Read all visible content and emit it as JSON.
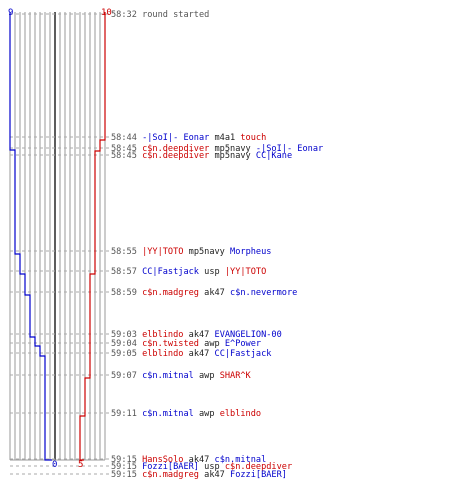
{
  "axis": {
    "top_left_label": "9",
    "top_right_label": "10",
    "bottom_zero_label": "0",
    "bottom_five_label": "5"
  },
  "colors": {
    "team_blue": "#0000cc",
    "team_red": "#cc0000",
    "neutral_text": "#222222",
    "time_text": "#555555",
    "grid": "#9a9a9a",
    "center_line": "#333333",
    "dash": "#aaaaaa"
  },
  "events": [
    {
      "time": "58:32",
      "parts": [
        {
          "t": "round started",
          "c": "gray"
        }
      ]
    },
    {
      "time": "58:44",
      "parts": [
        {
          "t": "-|SoI|- Eonar",
          "c": "blue"
        },
        {
          "t": " m4a1 ",
          "c": "black"
        },
        {
          "t": "touch",
          "c": "red"
        }
      ]
    },
    {
      "time": "58:45",
      "parts": [
        {
          "t": "c$n.deepdiver",
          "c": "red"
        },
        {
          "t": " mp5navy ",
          "c": "black"
        },
        {
          "t": "-|SoI|- Eonar",
          "c": "blue"
        }
      ]
    },
    {
      "time": "58:45",
      "parts": [
        {
          "t": "c$n.deepdiver",
          "c": "red"
        },
        {
          "t": " mp5navy ",
          "c": "black"
        },
        {
          "t": "CC|Kane",
          "c": "blue"
        }
      ]
    },
    {
      "time": "58:55",
      "parts": [
        {
          "t": "|YY|TOTO",
          "c": "red"
        },
        {
          "t": " mp5navy ",
          "c": "black"
        },
        {
          "t": "Morpheus",
          "c": "blue"
        }
      ]
    },
    {
      "time": "58:57",
      "parts": [
        {
          "t": "CC|Fastjack",
          "c": "blue"
        },
        {
          "t": " usp ",
          "c": "black"
        },
        {
          "t": "|YY|TOTO",
          "c": "red"
        }
      ]
    },
    {
      "time": "58:59",
      "parts": [
        {
          "t": "c$n.madgreg",
          "c": "red"
        },
        {
          "t": " ak47 ",
          "c": "black"
        },
        {
          "t": "c$n.nevermore",
          "c": "blue"
        }
      ]
    },
    {
      "time": "59:03",
      "parts": [
        {
          "t": "elblindo",
          "c": "red"
        },
        {
          "t": " ak47 ",
          "c": "black"
        },
        {
          "t": "EVANGELION-00",
          "c": "blue"
        }
      ]
    },
    {
      "time": "59:04",
      "parts": [
        {
          "t": "c$n.twisted",
          "c": "red"
        },
        {
          "t": " awp ",
          "c": "black"
        },
        {
          "t": "E^Power",
          "c": "blue"
        }
      ]
    },
    {
      "time": "59:05",
      "parts": [
        {
          "t": "elblindo",
          "c": "red"
        },
        {
          "t": " ak47 ",
          "c": "black"
        },
        {
          "t": "CC|Fastjack",
          "c": "blue"
        }
      ]
    },
    {
      "time": "59:07",
      "parts": [
        {
          "t": "c$n.mitnal",
          "c": "blue"
        },
        {
          "t": " awp ",
          "c": "black"
        },
        {
          "t": "SHAR^K",
          "c": "red"
        }
      ]
    },
    {
      "time": "59:11",
      "parts": [
        {
          "t": "c$n.mitnal",
          "c": "blue"
        },
        {
          "t": " awp ",
          "c": "black"
        },
        {
          "t": "elblindo",
          "c": "red"
        }
      ]
    },
    {
      "time": "59:15",
      "parts": [
        {
          "t": "HansSolo",
          "c": "red"
        },
        {
          "t": " ak47 ",
          "c": "black"
        },
        {
          "t": "c$n.mitnal",
          "c": "blue"
        }
      ]
    },
    {
      "time": "59:15",
      "parts": [
        {
          "t": "Fozzi[BAER]",
          "c": "blue"
        },
        {
          "t": " usp ",
          "c": "black"
        },
        {
          "t": "c$n.deepdiver",
          "c": "red"
        }
      ]
    },
    {
      "time": "59:15",
      "parts": [
        {
          "t": "c$n.madgreg",
          "c": "red"
        },
        {
          "t": " ak47 ",
          "c": "black"
        },
        {
          "t": "Fozzi[BAER]",
          "c": "blue"
        }
      ]
    }
  ]
}
